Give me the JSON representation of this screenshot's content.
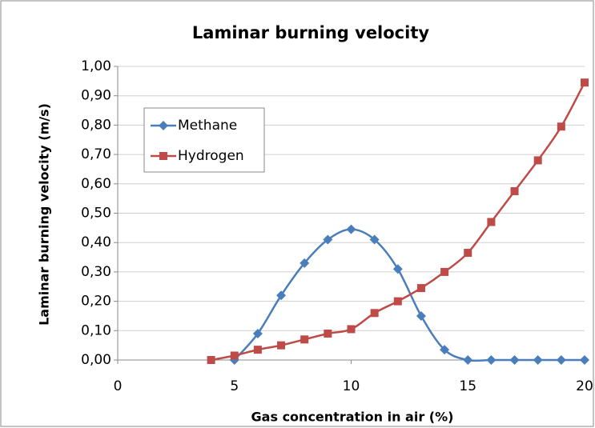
{
  "chart_data": {
    "type": "line",
    "title": "Laminar burning velocity",
    "x_label": "Gas concentration in air (%)",
    "y_label": "Laminar burning velocity (m/s)",
    "xlim": [
      0,
      20
    ],
    "xticks": [
      0,
      5,
      10,
      15,
      20
    ],
    "ylim": [
      0,
      1
    ],
    "yticks": [
      {
        "value": 0,
        "label": "0,00"
      },
      {
        "value": 0.1,
        "label": "0,10"
      },
      {
        "value": 0.2,
        "label": "0,20"
      },
      {
        "value": 0.3,
        "label": "0,30"
      },
      {
        "value": 0.4,
        "label": "0,40"
      },
      {
        "value": 0.5,
        "label": "0,50"
      },
      {
        "value": 0.6,
        "label": "0,60"
      },
      {
        "value": 0.7,
        "label": "0,70"
      },
      {
        "value": 0.8,
        "label": "0,80"
      },
      {
        "value": 0.9,
        "label": "0,90"
      },
      {
        "value": 1,
        "label": "1,00"
      }
    ],
    "grid": true,
    "legend": "upper left",
    "series": [
      {
        "name": "Methane",
        "color": "#4a7ebb",
        "marker": "diamond",
        "x": [
          5,
          6,
          7,
          8,
          9,
          10,
          11,
          12,
          13,
          14,
          15,
          16,
          17,
          18,
          19,
          20
        ],
        "values": [
          0.0,
          0.09,
          0.22,
          0.33,
          0.41,
          0.445,
          0.41,
          0.31,
          0.15,
          0.035,
          0.0,
          0.0,
          0.0,
          0.0,
          0.0,
          0.0
        ]
      },
      {
        "name": "Hydrogen",
        "color": "#be4b48",
        "marker": "square",
        "x": [
          4,
          5,
          6,
          7,
          8,
          9,
          10,
          11,
          12,
          13,
          14,
          15,
          16,
          17,
          18,
          19,
          20
        ],
        "values": [
          0.0,
          0.015,
          0.035,
          0.05,
          0.07,
          0.09,
          0.105,
          0.16,
          0.2,
          0.245,
          0.3,
          0.365,
          0.47,
          0.575,
          0.68,
          0.795,
          0.945
        ]
      }
    ]
  }
}
